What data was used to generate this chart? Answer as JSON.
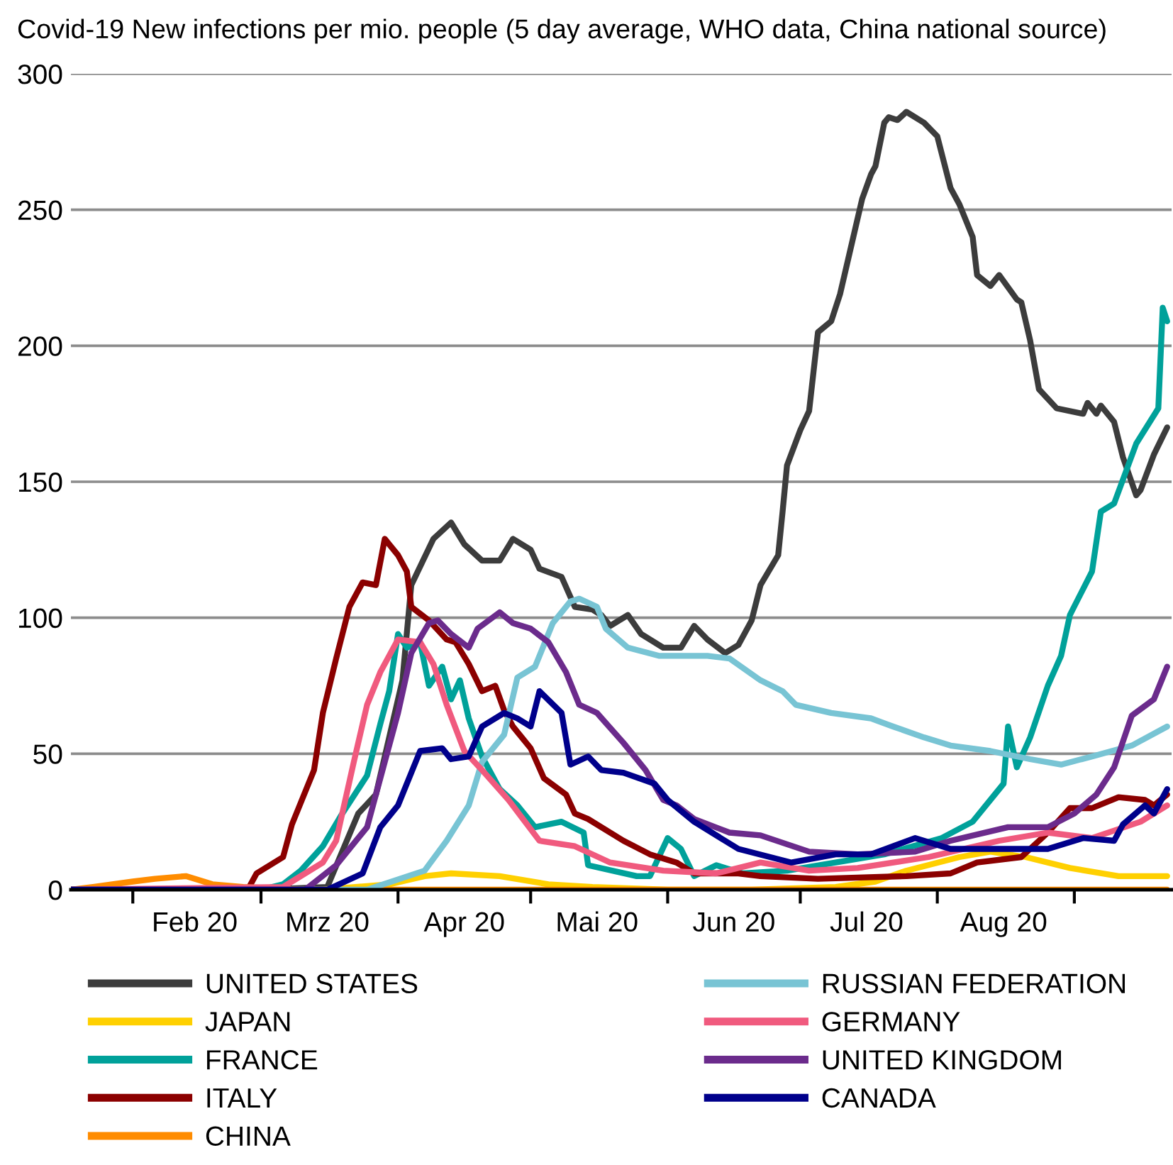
{
  "chart_data": {
    "type": "line",
    "title": "Covid-19 New infections per mio. people (5 day average, WHO data, China national source)",
    "xlim": [
      "2020-01-18",
      "2020-09-23"
    ],
    "xticks": [
      {
        "value": "2020-02-01",
        "label": null
      },
      {
        "value": "2020-02-15",
        "label": "Feb 20"
      },
      {
        "value": "2020-03-01",
        "label": null
      },
      {
        "value": "2020-03-16",
        "label": "Mrz 20"
      },
      {
        "value": "2020-04-01",
        "label": null
      },
      {
        "value": "2020-04-16",
        "label": "Apr 20"
      },
      {
        "value": "2020-05-01",
        "label": null
      },
      {
        "value": "2020-05-16",
        "label": "Mai 20"
      },
      {
        "value": "2020-06-01",
        "label": null
      },
      {
        "value": "2020-06-16",
        "label": "Jun 20"
      },
      {
        "value": "2020-07-01",
        "label": null
      },
      {
        "value": "2020-07-16",
        "label": "Jul 20"
      },
      {
        "value": "2020-08-01",
        "label": null
      },
      {
        "value": "2020-08-16",
        "label": "Aug 20"
      },
      {
        "value": "2020-09-01",
        "label": null
      }
    ],
    "ylim": [
      0,
      300
    ],
    "yticks": [
      0,
      50,
      100,
      150,
      200,
      250,
      300
    ],
    "grid": "y",
    "legend": "bottom",
    "marker": "none",
    "line_style": "solid",
    "series": [
      {
        "name": "UNITED STATES",
        "color": "#3c3c3c",
        "x": [
          "2020-01-18",
          "2020-03-01",
          "2020-03-16",
          "2020-03-23",
          "2020-03-27",
          "2020-03-30",
          "2020-04-02",
          "2020-04-04",
          "2020-04-09",
          "2020-04-13",
          "2020-04-16",
          "2020-04-20",
          "2020-04-24",
          "2020-04-27",
          "2020-05-01",
          "2020-05-03",
          "2020-05-08",
          "2020-05-11",
          "2020-05-15",
          "2020-05-17",
          "2020-05-19",
          "2020-05-23",
          "2020-05-26",
          "2020-05-31",
          "2020-06-04",
          "2020-06-07",
          "2020-06-10",
          "2020-06-14",
          "2020-06-17",
          "2020-06-20",
          "2020-06-22",
          "2020-06-26",
          "2020-06-27",
          "2020-06-28",
          "2020-07-01",
          "2020-07-03",
          "2020-07-05",
          "2020-07-08",
          "2020-07-10",
          "2020-07-13",
          "2020-07-15",
          "2020-07-17",
          "2020-07-18",
          "2020-07-20",
          "2020-07-21",
          "2020-07-23",
          "2020-07-25",
          "2020-07-29",
          "2020-08-01",
          "2020-08-04",
          "2020-08-06",
          "2020-08-09",
          "2020-08-10",
          "2020-08-13",
          "2020-08-15",
          "2020-08-19",
          "2020-08-20",
          "2020-08-22",
          "2020-08-24",
          "2020-08-28",
          "2020-09-03",
          "2020-09-04",
          "2020-09-06",
          "2020-09-07",
          "2020-09-10",
          "2020-09-12",
          "2020-09-15",
          "2020-09-16",
          "2020-09-19",
          "2020-09-22"
        ],
        "values": [
          0,
          0,
          1,
          28,
          35,
          56,
          77,
          112,
          129,
          135,
          127,
          121,
          121,
          129,
          125,
          118,
          115,
          104,
          103,
          101,
          97,
          101,
          94,
          89,
          89,
          97,
          92,
          87,
          90,
          99,
          112,
          123,
          139,
          156,
          169,
          176,
          205,
          209,
          219,
          240,
          254,
          263,
          266,
          282,
          284,
          283,
          286,
          282,
          277,
          258,
          252,
          240,
          226,
          222,
          226,
          217,
          216,
          202,
          184,
          177,
          175,
          179,
          175,
          178,
          172,
          159,
          145,
          147,
          160,
          170
        ]
      },
      {
        "name": "JAPAN",
        "color": "#ffd000",
        "x": [
          "2020-01-18",
          "2020-03-15",
          "2020-03-30",
          "2020-04-07",
          "2020-04-13",
          "2020-04-24",
          "2020-05-05",
          "2020-05-15",
          "2020-06-01",
          "2020-06-20",
          "2020-07-09",
          "2020-07-18",
          "2020-07-25",
          "2020-08-06",
          "2020-08-13",
          "2020-08-21",
          "2020-08-31",
          "2020-09-11",
          "2020-09-22"
        ],
        "values": [
          0,
          0,
          2,
          5,
          6,
          5,
          2,
          1,
          0,
          0,
          1,
          3,
          7,
          12,
          14,
          12,
          8,
          5,
          5
        ]
      },
      {
        "name": "FRANCE",
        "color": "#00a19a",
        "x": [
          "2020-01-18",
          "2020-03-01",
          "2020-03-06",
          "2020-03-10",
          "2020-03-15",
          "2020-03-19",
          "2020-03-25",
          "2020-03-28",
          "2020-03-30",
          "2020-04-01",
          "2020-04-03",
          "2020-04-06",
          "2020-04-08",
          "2020-04-11",
          "2020-04-13",
          "2020-04-15",
          "2020-04-17",
          "2020-04-20",
          "2020-04-24",
          "2020-04-28",
          "2020-05-02",
          "2020-05-08",
          "2020-05-13",
          "2020-05-14",
          "2020-05-25",
          "2020-05-28",
          "2020-06-01",
          "2020-06-04",
          "2020-06-07",
          "2020-06-12",
          "2020-06-18",
          "2020-06-28",
          "2020-07-09",
          "2020-07-20",
          "2020-08-02",
          "2020-08-09",
          "2020-08-13",
          "2020-08-16",
          "2020-08-17",
          "2020-08-19",
          "2020-08-22",
          "2020-08-26",
          "2020-08-29",
          "2020-08-31",
          "2020-09-05",
          "2020-09-07",
          "2020-09-10",
          "2020-09-15",
          "2020-09-20",
          "2020-09-21",
          "2020-09-22"
        ],
        "values": [
          0,
          0,
          2,
          7,
          16,
          27,
          42,
          61,
          73,
          94,
          89,
          91,
          75,
          82,
          70,
          77,
          63,
          49,
          37,
          31,
          23,
          25,
          21,
          9,
          5,
          5,
          19,
          15,
          5,
          9,
          6,
          7,
          10,
          13,
          19,
          25,
          33,
          39,
          60,
          45,
          56,
          75,
          86,
          101,
          117,
          139,
          142,
          164,
          177,
          214,
          209
        ]
      },
      {
        "name": "ITALY",
        "color": "#8b0000",
        "x": [
          "2020-01-18",
          "2020-02-27",
          "2020-02-29",
          "2020-03-06",
          "2020-03-08",
          "2020-03-13",
          "2020-03-15",
          "2020-03-18",
          "2020-03-21",
          "2020-03-24",
          "2020-03-27",
          "2020-03-29",
          "2020-04-01",
          "2020-04-03",
          "2020-04-04",
          "2020-04-08",
          "2020-04-12",
          "2020-04-14",
          "2020-04-17",
          "2020-04-20",
          "2020-04-23",
          "2020-04-25",
          "2020-04-27",
          "2020-05-01",
          "2020-05-04",
          "2020-05-09",
          "2020-05-11",
          "2020-05-14",
          "2020-05-22",
          "2020-05-28",
          "2020-06-03",
          "2020-06-07",
          "2020-06-17",
          "2020-06-22",
          "2020-07-05",
          "2020-07-25",
          "2020-08-04",
          "2020-08-10",
          "2020-08-20",
          "2020-08-26",
          "2020-08-31",
          "2020-09-05",
          "2020-09-11",
          "2020-09-17",
          "2020-09-19",
          "2020-09-22"
        ],
        "values": [
          0,
          0,
          6,
          12,
          24,
          44,
          65,
          85,
          104,
          113,
          112,
          129,
          123,
          117,
          104,
          99,
          92,
          91,
          83,
          73,
          75,
          66,
          60,
          52,
          41,
          35,
          28,
          26,
          18,
          13,
          10,
          6,
          6,
          5,
          4,
          5,
          6,
          10,
          12,
          21,
          30,
          30,
          34,
          33,
          31,
          35
        ]
      },
      {
        "name": "CHINA",
        "color": "#ff8c00",
        "x": [
          "2020-01-18",
          "2020-01-23",
          "2020-02-01",
          "2020-02-06",
          "2020-02-13",
          "2020-02-19",
          "2020-02-26",
          "2020-03-10",
          "2020-09-22"
        ],
        "values": [
          0,
          1,
          3,
          4,
          5,
          2,
          1,
          0,
          0
        ]
      },
      {
        "name": "RUSSIAN FEDERATION",
        "color": "#78c4d4",
        "x": [
          "2020-01-18",
          "2020-03-25",
          "2020-04-07",
          "2020-04-12",
          "2020-04-17",
          "2020-04-20",
          "2020-04-25",
          "2020-04-28",
          "2020-05-02",
          "2020-05-06",
          "2020-05-10",
          "2020-05-12",
          "2020-05-16",
          "2020-05-18",
          "2020-05-23",
          "2020-05-30",
          "2020-06-10",
          "2020-06-15",
          "2020-06-22",
          "2020-06-27",
          "2020-06-30",
          "2020-07-08",
          "2020-07-17",
          "2020-07-22",
          "2020-07-29",
          "2020-08-04",
          "2020-08-13",
          "2020-08-22",
          "2020-08-29",
          "2020-09-05",
          "2020-09-14",
          "2020-09-22"
        ],
        "values": [
          0,
          0,
          7,
          18,
          31,
          47,
          57,
          78,
          82,
          98,
          106,
          107,
          104,
          96,
          89,
          86,
          86,
          85,
          77,
          73,
          68,
          65,
          63,
          60,
          56,
          53,
          51,
          48,
          46,
          49,
          53,
          60
        ]
      },
      {
        "name": "GERMANY",
        "color": "#f05a7e",
        "x": [
          "2020-01-18",
          "2020-03-06",
          "2020-03-15",
          "2020-03-18",
          "2020-03-22",
          "2020-03-25",
          "2020-03-28",
          "2020-04-01",
          "2020-04-06",
          "2020-04-09",
          "2020-04-12",
          "2020-04-16",
          "2020-04-20",
          "2020-04-26",
          "2020-05-03",
          "2020-05-11",
          "2020-05-19",
          "2020-05-31",
          "2020-06-12",
          "2020-06-22",
          "2020-07-03",
          "2020-07-14",
          "2020-07-30",
          "2020-08-15",
          "2020-08-26",
          "2020-09-05",
          "2020-09-16",
          "2020-09-22"
        ],
        "values": [
          0,
          1,
          10,
          18,
          47,
          68,
          80,
          92,
          91,
          83,
          68,
          51,
          44,
          33,
          18,
          16,
          10,
          7,
          6,
          10,
          7,
          8,
          12,
          18,
          21,
          19,
          25,
          31
        ]
      },
      {
        "name": "UNITED KINGDOM",
        "color": "#6b2b8c",
        "x": [
          "2020-01-18",
          "2020-03-11",
          "2020-03-18",
          "2020-03-25",
          "2020-03-29",
          "2020-04-01",
          "2020-04-04",
          "2020-04-08",
          "2020-04-10",
          "2020-04-13",
          "2020-04-17",
          "2020-04-19",
          "2020-04-24",
          "2020-04-27",
          "2020-05-01",
          "2020-05-05",
          "2020-05-09",
          "2020-05-12",
          "2020-05-16",
          "2020-05-22",
          "2020-05-27",
          "2020-05-31",
          "2020-06-03",
          "2020-06-07",
          "2020-06-15",
          "2020-06-22",
          "2020-07-03",
          "2020-07-14",
          "2020-07-27",
          "2020-08-04",
          "2020-08-17",
          "2020-08-26",
          "2020-09-01",
          "2020-09-06",
          "2020-09-10",
          "2020-09-14",
          "2020-09-19",
          "2020-09-22"
        ],
        "values": [
          0,
          0,
          9,
          23,
          47,
          65,
          87,
          98,
          99,
          94,
          89,
          96,
          102,
          98,
          96,
          91,
          80,
          68,
          65,
          54,
          44,
          33,
          31,
          26,
          21,
          20,
          14,
          13,
          14,
          18,
          23,
          23,
          28,
          35,
          45,
          64,
          70,
          82
        ]
      },
      {
        "name": "CANADA",
        "color": "#00008b",
        "x": [
          "2020-01-18",
          "2020-03-16",
          "2020-03-24",
          "2020-03-28",
          "2020-04-01",
          "2020-04-06",
          "2020-04-11",
          "2020-04-13",
          "2020-04-17",
          "2020-04-20",
          "2020-04-25",
          "2020-04-28",
          "2020-05-01",
          "2020-05-03",
          "2020-05-08",
          "2020-05-10",
          "2020-05-14",
          "2020-05-17",
          "2020-05-22",
          "2020-05-29",
          "2020-06-01",
          "2020-06-07",
          "2020-06-17",
          "2020-06-29",
          "2020-07-09",
          "2020-07-17",
          "2020-07-27",
          "2020-08-04",
          "2020-08-15",
          "2020-08-26",
          "2020-09-03",
          "2020-09-10",
          "2020-09-12",
          "2020-09-17",
          "2020-09-19",
          "2020-09-22"
        ],
        "values": [
          0,
          0,
          6,
          23,
          31,
          51,
          52,
          48,
          49,
          60,
          65,
          63,
          60,
          73,
          65,
          46,
          49,
          44,
          43,
          39,
          33,
          25,
          15,
          10,
          13,
          13,
          19,
          15,
          15,
          15,
          19,
          18,
          24,
          31,
          28,
          37
        ]
      }
    ]
  }
}
